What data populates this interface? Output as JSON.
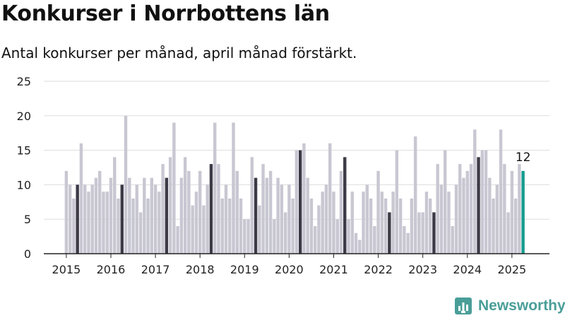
{
  "title": "Konkurser i Norrbottens län",
  "subtitle": "Antal konkurser per månad, april månad förstärkt.",
  "brand": {
    "name": "Newsworthy",
    "icon": "bar-chart-logo-icon"
  },
  "colors": {
    "bar": "#c8c7d2",
    "april": "#3d3a47",
    "latest": "#159c8f",
    "axis": "#222222",
    "grid": "#dddddd",
    "brand": "#4a9e98"
  },
  "chart_data": {
    "type": "bar",
    "title": "Konkurser i Norrbottens län",
    "subtitle": "Antal konkurser per månad, april månad förstärkt.",
    "xlabel": "",
    "ylabel": "",
    "ylim": [
      0,
      25
    ],
    "yticks": [
      0,
      5,
      10,
      15,
      20,
      25
    ],
    "grid": true,
    "start": "2015-01",
    "x_tick_labels": [
      "2015",
      "2016",
      "2017",
      "2018",
      "2019",
      "2020",
      "2021",
      "2022",
      "2023",
      "2024",
      "2025"
    ],
    "highlight": "April",
    "latest_label": "12",
    "values": [
      12,
      10,
      8,
      10,
      16,
      10,
      9,
      10,
      11,
      12,
      9,
      9,
      11,
      14,
      8,
      10,
      20,
      11,
      8,
      10,
      6,
      11,
      8,
      11,
      10,
      9,
      13,
      11,
      14,
      19,
      4,
      11,
      14,
      12,
      7,
      9,
      12,
      7,
      10,
      13,
      19,
      13,
      8,
      10,
      8,
      19,
      12,
      8,
      5,
      5,
      14,
      11,
      7,
      13,
      11,
      12,
      5,
      11,
      10,
      6,
      10,
      8,
      15,
      15,
      16,
      11,
      8,
      4,
      7,
      9,
      10,
      16,
      9,
      5,
      12,
      14,
      5,
      9,
      3,
      2,
      9,
      10,
      8,
      4,
      12,
      9,
      8,
      6,
      9,
      15,
      8,
      4,
      3,
      8,
      17,
      6,
      6,
      9,
      8,
      6,
      13,
      10,
      15,
      9,
      4,
      10,
      13,
      11,
      12,
      13,
      18,
      14,
      15,
      15,
      11,
      8,
      10,
      18,
      13,
      6,
      12,
      8,
      13,
      12
    ]
  }
}
